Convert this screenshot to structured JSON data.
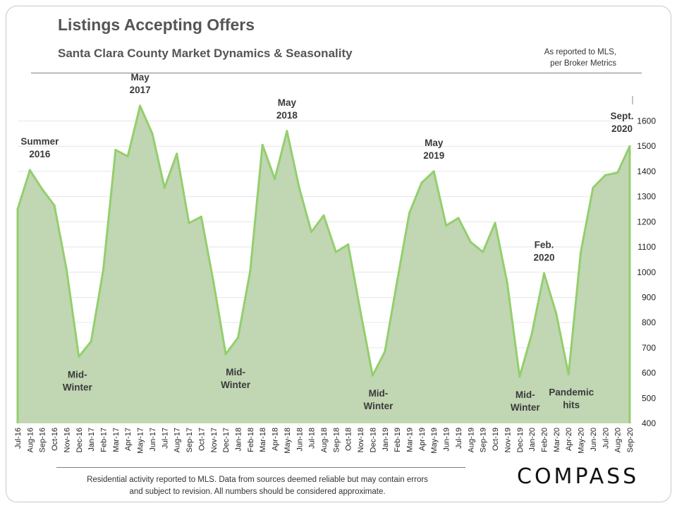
{
  "header": {
    "title": "Listings Accepting Offers",
    "subtitle": "Santa Clara County Market Dynamics & Seasonality",
    "note_line1": "As reported to MLS,",
    "note_line2": "per Broker Metrics"
  },
  "footer": {
    "line1": "Residential activity reported to MLS. Data from sources deemed reliable but may contain errors",
    "line2": "and subject to revision. All numbers should be considered approximate.",
    "brand": "COMPASS"
  },
  "colors": {
    "area_fill": "#c1d6b3",
    "line": "#93cf6d",
    "text": "#555555"
  },
  "chart_data": {
    "type": "area",
    "title": "Listings Accepting Offers",
    "subtitle": "Santa Clara County Market Dynamics & Seasonality",
    "xlabel": "",
    "ylabel": "",
    "ylim": [
      400,
      1600
    ],
    "yticks": [
      400,
      500,
      600,
      700,
      800,
      900,
      1000,
      1100,
      1200,
      1300,
      1400,
      1500,
      1600
    ],
    "y_axis_position": "right",
    "grid": true,
    "legend": "none",
    "categories": [
      "Jul-16",
      "Aug-16",
      "Sep-16",
      "Oct-16",
      "Nov-16",
      "Dec-16",
      "Jan-17",
      "Feb-17",
      "Mar-17",
      "Apr-17",
      "May-17",
      "Jun-17",
      "Jul-17",
      "Aug-17",
      "Sep-17",
      "Oct-17",
      "Nov-17",
      "Dec-17",
      "Jan-18",
      "Feb-18",
      "Mar-18",
      "Apr-18",
      "May-18",
      "Jun-18",
      "Jul-18",
      "Aug-18",
      "Sep-18",
      "Oct-18",
      "Nov-18",
      "Dec-18",
      "Jan-19",
      "Feb-19",
      "Mar-19",
      "Apr-19",
      "May-19",
      "Jun-19",
      "Jul-19",
      "Aug-19",
      "Sep-19",
      "Oct-19",
      "Nov-19",
      "Dec-19",
      "Jan-20",
      "Feb-20",
      "Mar-20",
      "Apr-20",
      "May-20",
      "Jun-20",
      "Jul-20",
      "Aug-20",
      "Sep-20"
    ],
    "values": [
      1250,
      1405,
      1330,
      1265,
      1010,
      665,
      725,
      1010,
      1485,
      1460,
      1660,
      1550,
      1335,
      1470,
      1195,
      1220,
      960,
      675,
      740,
      1005,
      1505,
      1370,
      1560,
      1335,
      1160,
      1225,
      1080,
      1110,
      845,
      590,
      685,
      965,
      1235,
      1355,
      1400,
      1185,
      1215,
      1120,
      1080,
      1195,
      955,
      585,
      755,
      995,
      835,
      595,
      1080,
      1335,
      1385,
      1395,
      1500
    ],
    "annotations": [
      {
        "lines": [
          "Summer",
          "2016"
        ],
        "index": 1,
        "anchor": "above"
      },
      {
        "lines": [
          "May",
          "2017"
        ],
        "index": 10,
        "anchor": "above"
      },
      {
        "lines": [
          "May",
          "2018"
        ],
        "index": 22,
        "anchor": "above"
      },
      {
        "lines": [
          "May",
          "2019"
        ],
        "index": 34,
        "anchor": "above"
      },
      {
        "lines": [
          "Feb.",
          "2020"
        ],
        "index": 43,
        "anchor": "above"
      },
      {
        "lines": [
          "Sept.",
          "2020"
        ],
        "index": 50,
        "anchor": "above"
      },
      {
        "lines": [
          "Mid-",
          "Winter"
        ],
        "index": 5,
        "anchor": "below"
      },
      {
        "lines": [
          "Mid-",
          "Winter"
        ],
        "index": 17,
        "anchor": "below"
      },
      {
        "lines": [
          "Mid-",
          "Winter"
        ],
        "index": 29,
        "anchor": "below"
      },
      {
        "lines": [
          "Mid-",
          "Winter"
        ],
        "index": 41,
        "anchor": "below"
      },
      {
        "lines": [
          "Pandemic",
          "hits"
        ],
        "index": 45,
        "anchor": "below"
      }
    ]
  }
}
